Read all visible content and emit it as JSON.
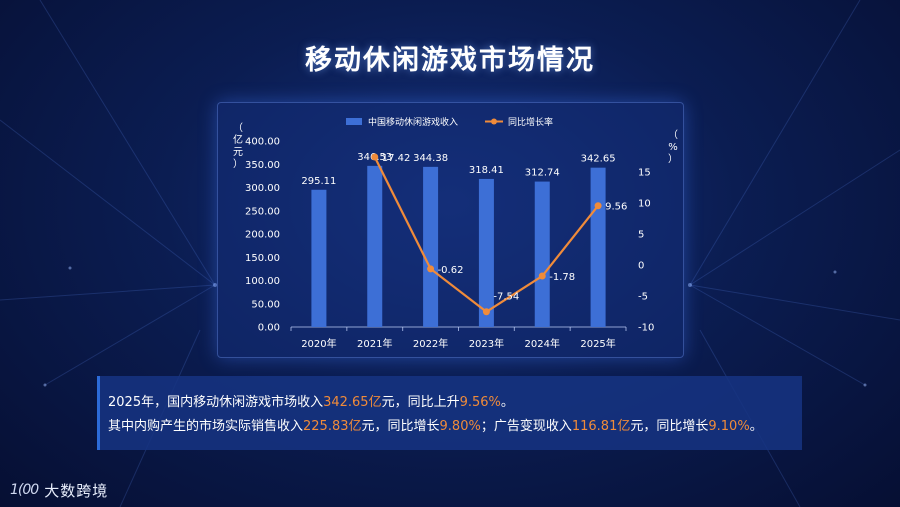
{
  "title": "移动休闲游戏市场情况",
  "chart_data": {
    "type": "bar",
    "categories": [
      "2020年",
      "2021年",
      "2022年",
      "2023年",
      "2024年",
      "2025年"
    ],
    "series": [
      {
        "name": "中国移动休闲游戏收入",
        "type": "bar",
        "axis": "left",
        "color": "#3d6fd6",
        "values": [
          295.11,
          346.53,
          344.38,
          318.41,
          312.74,
          342.65
        ],
        "labels": [
          "295.11",
          "346.53",
          "344.38",
          "318.41",
          "312.74",
          "342.65"
        ]
      },
      {
        "name": "同比增长率",
        "type": "line",
        "axis": "right",
        "color": "#f08b3a",
        "values": [
          null,
          17.42,
          -0.62,
          -7.54,
          -1.78,
          9.56
        ],
        "labels": [
          "",
          "17.42",
          "-0.62",
          "-7.54",
          "-1.78",
          "9.56"
        ]
      }
    ],
    "y_left": {
      "label": "（亿元）",
      "ylim": [
        0,
        400
      ],
      "ticks": [
        "0.00",
        "50.00",
        "100.00",
        "150.00",
        "200.00",
        "250.00",
        "300.00",
        "350.00",
        "400.00"
      ]
    },
    "y_right": {
      "label": "（%）",
      "ylim": [
        -10,
        20
      ],
      "ticks": [
        "-10",
        "-5",
        "0",
        "5",
        "10",
        "15"
      ]
    },
    "legend_position": "top-center",
    "grid": false
  },
  "note": {
    "line1": [
      {
        "text": "2025年，国内移动休闲游戏市场收入",
        "hl": false
      },
      {
        "text": "342.65亿",
        "hl": true
      },
      {
        "text": "元，同比上升",
        "hl": false
      },
      {
        "text": "9.56%",
        "hl": true
      },
      {
        "text": "。",
        "hl": false
      }
    ],
    "line2": [
      {
        "text": "其中内购产生的市场实际销售收入",
        "hl": false
      },
      {
        "text": "225.83亿",
        "hl": true
      },
      {
        "text": "元，同比增长",
        "hl": false
      },
      {
        "text": "9.80%",
        "hl": true
      },
      {
        "text": "；广告变现收入",
        "hl": false
      },
      {
        "text": "116.81亿",
        "hl": true
      },
      {
        "text": "元，同比增长",
        "hl": false
      },
      {
        "text": "9.10%",
        "hl": true
      },
      {
        "text": "。",
        "hl": false
      }
    ]
  },
  "logo": {
    "mark": "1(00",
    "text": "大数跨境"
  }
}
